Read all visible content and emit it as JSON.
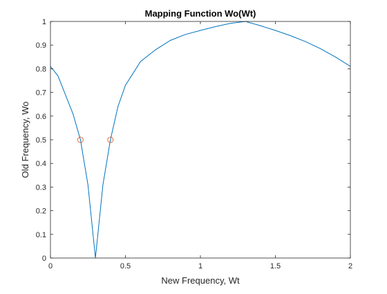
{
  "chart_data": {
    "type": "line",
    "title": "Mapping Function Wo(Wt)",
    "xlabel": "New Frequency, Wt",
    "ylabel": "Old Frequency, Wo",
    "xlim": [
      0,
      2
    ],
    "ylim": [
      0,
      1
    ],
    "x_ticks": [
      0,
      0.5,
      1,
      1.5,
      2
    ],
    "x_tick_labels": [
      "0",
      "0.5",
      "1",
      "1.5",
      "2"
    ],
    "y_ticks": [
      0,
      0.1,
      0.2,
      0.3,
      0.4,
      0.5,
      0.6,
      0.7,
      0.8,
      0.9,
      1
    ],
    "y_tick_labels": [
      "0",
      "0.1",
      "0.2",
      "0.3",
      "0.4",
      "0.5",
      "0.6",
      "0.7",
      "0.8",
      "0.9",
      "1"
    ],
    "grid": false,
    "box": true,
    "series": [
      {
        "type": "line",
        "color": "#0072BD",
        "x": [
          0,
          0.05,
          0.1,
          0.15,
          0.2,
          0.25,
          0.3,
          0.35,
          0.4,
          0.45,
          0.5,
          0.6,
          0.7,
          0.8,
          0.9,
          1.0,
          1.1,
          1.2,
          1.3,
          1.4,
          1.5,
          1.6,
          1.7,
          1.8,
          1.9,
          2.0
        ],
        "y": [
          0.81,
          0.77,
          0.69,
          0.61,
          0.5,
          0.31,
          0.0,
          0.31,
          0.5,
          0.64,
          0.73,
          0.83,
          0.88,
          0.92,
          0.945,
          0.962,
          0.978,
          0.992,
          1.0,
          0.982,
          0.962,
          0.94,
          0.915,
          0.885,
          0.85,
          0.81
        ]
      },
      {
        "type": "scatter",
        "marker": "circle",
        "color": "#D95319",
        "x": [
          0.2,
          0.4
        ],
        "y": [
          0.5,
          0.5
        ]
      }
    ]
  }
}
